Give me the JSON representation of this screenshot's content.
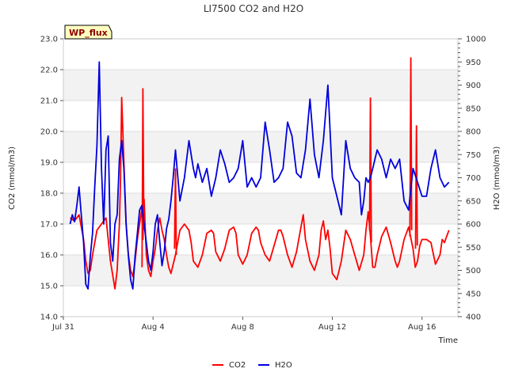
{
  "chart_data": {
    "type": "line",
    "title": "LI7500 CO2 and H2O",
    "badge": "WP_flux",
    "xlabel": "Time",
    "ylabel": "CO2 (mmol/m3)",
    "y2label": "H2O (mmol/m3)",
    "xlim": [
      0,
      17.6
    ],
    "ylim": [
      14.0,
      23.0
    ],
    "y2lim": [
      400,
      1000
    ],
    "x_ticks": [
      {
        "value": 0,
        "label": "Jul 31"
      },
      {
        "value": 4,
        "label": "Aug 4"
      },
      {
        "value": 8,
        "label": "Aug 8"
      },
      {
        "value": 12,
        "label": "Aug 12"
      },
      {
        "value": 16,
        "label": "Aug 16"
      }
    ],
    "y_ticks": [
      "14.0",
      "15.0",
      "16.0",
      "17.0",
      "18.0",
      "19.0",
      "20.0",
      "21.0",
      "22.0",
      "23.0"
    ],
    "y2_ticks": [
      "400",
      "450",
      "500",
      "550",
      "600",
      "650",
      "700",
      "750",
      "800",
      "850",
      "900",
      "950",
      "1000"
    ],
    "legend": [
      "CO2",
      "H2O"
    ],
    "legend_position": "bottom-center",
    "series": [
      {
        "name": "CO2",
        "axis": "left",
        "color": "#ff0000",
        "x": [
          0.3,
          0.5,
          0.7,
          0.9,
          1.0,
          1.1,
          1.2,
          1.3,
          1.5,
          1.7,
          1.9,
          2.1,
          2.3,
          2.4,
          2.5,
          2.55,
          2.6,
          2.7,
          2.8,
          2.9,
          3.0,
          3.1,
          3.2,
          3.3,
          3.4,
          3.5,
          3.55,
          3.6,
          3.7,
          3.8,
          3.9,
          4.0,
          4.1,
          4.2,
          4.3,
          4.4,
          4.5,
          4.6,
          4.7,
          4.8,
          5.0,
          5.2,
          5.4,
          5.6,
          5.7,
          5.8,
          6.0,
          6.2,
          6.4,
          6.6,
          6.7,
          6.8,
          7.0,
          7.2,
          7.4,
          7.6,
          7.7,
          7.8,
          8.0,
          8.2,
          8.4,
          8.6,
          8.7,
          8.8,
          9.0,
          9.2,
          9.4,
          9.6,
          9.7,
          9.8,
          10.0,
          10.2,
          10.4,
          10.6,
          10.7,
          10.8,
          11.0,
          11.2,
          11.4,
          11.5,
          11.6,
          11.7,
          11.8,
          11.9,
          12.0,
          12.2,
          12.4,
          12.6,
          12.8,
          13.0,
          13.2,
          13.4,
          13.5,
          13.6,
          13.7,
          13.8,
          13.9,
          14.0,
          14.2,
          14.4,
          14.6,
          14.8,
          14.9,
          15.0,
          15.2,
          15.4,
          15.6,
          15.7,
          15.8,
          15.9,
          16.0,
          16.2,
          16.4,
          16.6,
          16.8,
          16.9,
          17.0,
          17.2
        ],
        "values": [
          17.2,
          17.1,
          17.3,
          16.5,
          15.8,
          15.4,
          15.5,
          16.0,
          16.8,
          17.0,
          17.2,
          15.8,
          14.9,
          15.5,
          17.0,
          18.5,
          21.1,
          19.0,
          17.0,
          16.0,
          15.5,
          15.3,
          15.8,
          16.5,
          17.0,
          17.5,
          16.5,
          17.8,
          16.0,
          15.5,
          15.3,
          15.8,
          16.2,
          16.8,
          17.2,
          16.8,
          16.5,
          16.0,
          15.6,
          15.4,
          16.0,
          16.8,
          17.0,
          16.8,
          16.4,
          15.8,
          15.6,
          16.0,
          16.7,
          16.8,
          16.7,
          16.1,
          15.8,
          16.2,
          16.8,
          16.9,
          16.7,
          16.0,
          15.7,
          16.0,
          16.7,
          16.9,
          16.8,
          16.4,
          16.0,
          15.8,
          16.3,
          16.8,
          16.8,
          16.6,
          16.0,
          15.6,
          16.1,
          16.9,
          17.3,
          16.5,
          15.8,
          15.5,
          16.0,
          16.8,
          17.1,
          16.5,
          16.8,
          16.2,
          15.4,
          15.2,
          15.8,
          16.8,
          16.5,
          16.0,
          15.5,
          16.0,
          16.8,
          17.4,
          16.6,
          15.6,
          15.6,
          16.0,
          16.6,
          16.9,
          16.4,
          15.8,
          15.6,
          15.8,
          16.5,
          16.9,
          16.2,
          15.6,
          15.8,
          16.3,
          16.5,
          16.5,
          16.4,
          15.7,
          16.0,
          16.5,
          16.4,
          16.8
        ],
        "spikes": [
          {
            "x": 3.55,
            "values": [
              15.6,
              21.4,
              16.8
            ]
          },
          {
            "x": 5.0,
            "values": [
              16.2,
              18.8,
              16.0
            ]
          },
          {
            "x": 13.7,
            "values": [
              16.8,
              21.1,
              16.4
            ]
          },
          {
            "x": 15.5,
            "values": [
              16.6,
              22.4,
              16.8
            ]
          },
          {
            "x": 15.75,
            "values": [
              16.2,
              20.2,
              16.3
            ]
          }
        ]
      },
      {
        "name": "H2O",
        "axis": "right",
        "color": "#0000dd",
        "x": [
          0.3,
          0.4,
          0.5,
          0.6,
          0.7,
          0.8,
          0.9,
          1.0,
          1.1,
          1.2,
          1.3,
          1.4,
          1.5,
          1.6,
          1.7,
          1.8,
          1.9,
          2.0,
          2.1,
          2.2,
          2.3,
          2.4,
          2.5,
          2.6,
          2.7,
          2.8,
          2.9,
          3.0,
          3.1,
          3.2,
          3.3,
          3.4,
          3.5,
          3.6,
          3.7,
          3.8,
          3.9,
          4.0,
          4.1,
          4.2,
          4.3,
          4.4,
          4.5,
          4.6,
          4.7,
          4.8,
          4.9,
          5.0,
          5.2,
          5.4,
          5.6,
          5.8,
          5.9,
          6.0,
          6.2,
          6.4,
          6.6,
          6.8,
          7.0,
          7.2,
          7.4,
          7.6,
          7.8,
          8.0,
          8.2,
          8.4,
          8.6,
          8.8,
          9.0,
          9.2,
          9.4,
          9.6,
          9.8,
          10.0,
          10.2,
          10.4,
          10.6,
          10.8,
          11.0,
          11.2,
          11.4,
          11.6,
          11.8,
          12.0,
          12.2,
          12.4,
          12.6,
          12.8,
          13.0,
          13.2,
          13.3,
          13.4,
          13.5,
          13.6,
          13.7,
          13.8,
          14.0,
          14.2,
          14.4,
          14.6,
          14.8,
          15.0,
          15.2,
          15.4,
          15.6,
          15.8,
          16.0,
          16.2,
          16.4,
          16.6,
          16.8,
          17.0,
          17.2
        ],
        "values": [
          600,
          620,
          605,
          640,
          680,
          620,
          560,
          470,
          460,
          530,
          580,
          680,
          770,
          950,
          720,
          600,
          760,
          790,
          560,
          520,
          600,
          620,
          740,
          780,
          720,
          600,
          530,
          480,
          460,
          530,
          580,
          630,
          640,
          600,
          560,
          520,
          500,
          540,
          600,
          620,
          560,
          510,
          540,
          590,
          610,
          650,
          700,
          760,
          650,
          700,
          780,
          720,
          700,
          730,
          690,
          720,
          660,
          700,
          760,
          730,
          690,
          700,
          720,
          780,
          680,
          700,
          680,
          700,
          820,
          760,
          690,
          700,
          720,
          820,
          790,
          710,
          700,
          760,
          870,
          750,
          700,
          780,
          900,
          700,
          660,
          620,
          780,
          720,
          700,
          690,
          620,
          650,
          700,
          690,
          700,
          720,
          760,
          740,
          700,
          740,
          720,
          740,
          650,
          630,
          720,
          690,
          660,
          660,
          720,
          760,
          700,
          680,
          690
        ]
      }
    ]
  }
}
